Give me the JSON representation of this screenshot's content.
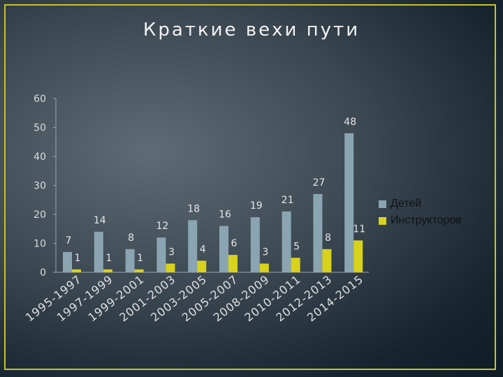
{
  "slide": {
    "title": "Краткие вехи пути"
  },
  "chart_data": {
    "type": "bar",
    "title": "",
    "xlabel": "",
    "ylabel": "",
    "ylim": [
      0,
      60
    ],
    "yticks": [
      0,
      10,
      20,
      30,
      40,
      50,
      60
    ],
    "grid": false,
    "legend_position": "right",
    "categories": [
      "1995-1997",
      "1997-1999",
      "1999-2001",
      "2001-2003",
      "2003-2005",
      "2005-2007",
      "2008-2009",
      "2010-2011",
      "2012-2013",
      "2014-2015"
    ],
    "series": [
      {
        "name": "Детей",
        "color": "#8aa5b1",
        "values": [
          7,
          14,
          8,
          12,
          18,
          16,
          19,
          21,
          27,
          48
        ]
      },
      {
        "name": "Инструкторов",
        "color": "#d9d21c",
        "values": [
          1,
          1,
          1,
          3,
          4,
          6,
          3,
          5,
          8,
          11
        ]
      }
    ]
  }
}
